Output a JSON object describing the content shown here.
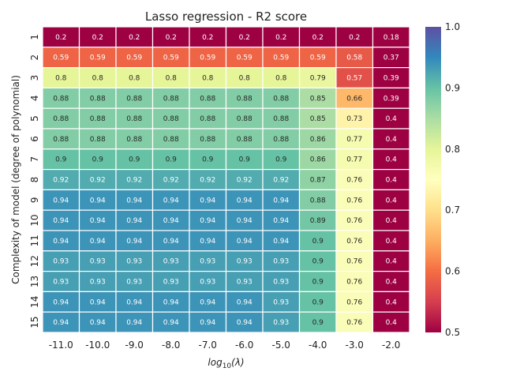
{
  "chart_data": {
    "type": "heatmap",
    "title": "Lasso regression - R2 score",
    "xlabel": "log10(λ)",
    "ylabel": "Complexity of model (degree of polynomial)",
    "x_categories": [
      "-11.0",
      "-10.0",
      "-9.0",
      "-8.0",
      "-7.0",
      "-6.0",
      "-5.0",
      "-4.0",
      "-3.0",
      "-2.0"
    ],
    "y_categories": [
      "1",
      "2",
      "3",
      "4",
      "5",
      "6",
      "7",
      "8",
      "9",
      "10",
      "11",
      "12",
      "13",
      "14",
      "15"
    ],
    "values": [
      [
        0.2,
        0.2,
        0.2,
        0.2,
        0.2,
        0.2,
        0.2,
        0.2,
        0.2,
        0.18
      ],
      [
        0.59,
        0.59,
        0.59,
        0.59,
        0.59,
        0.59,
        0.59,
        0.59,
        0.58,
        0.37
      ],
      [
        0.8,
        0.8,
        0.8,
        0.8,
        0.8,
        0.8,
        0.8,
        0.79,
        0.57,
        0.39
      ],
      [
        0.88,
        0.88,
        0.88,
        0.88,
        0.88,
        0.88,
        0.88,
        0.85,
        0.66,
        0.39
      ],
      [
        0.88,
        0.88,
        0.88,
        0.88,
        0.88,
        0.88,
        0.88,
        0.85,
        0.73,
        0.4
      ],
      [
        0.88,
        0.88,
        0.88,
        0.88,
        0.88,
        0.88,
        0.88,
        0.86,
        0.77,
        0.4
      ],
      [
        0.9,
        0.9,
        0.9,
        0.9,
        0.9,
        0.9,
        0.9,
        0.86,
        0.77,
        0.4
      ],
      [
        0.92,
        0.92,
        0.92,
        0.92,
        0.92,
        0.92,
        0.92,
        0.87,
        0.76,
        0.4
      ],
      [
        0.94,
        0.94,
        0.94,
        0.94,
        0.94,
        0.94,
        0.94,
        0.88,
        0.76,
        0.4
      ],
      [
        0.94,
        0.94,
        0.94,
        0.94,
        0.94,
        0.94,
        0.94,
        0.89,
        0.76,
        0.4
      ],
      [
        0.94,
        0.94,
        0.94,
        0.94,
        0.94,
        0.94,
        0.94,
        0.9,
        0.76,
        0.4
      ],
      [
        0.93,
        0.93,
        0.93,
        0.93,
        0.93,
        0.93,
        0.93,
        0.9,
        0.76,
        0.4
      ],
      [
        0.93,
        0.93,
        0.93,
        0.93,
        0.93,
        0.93,
        0.93,
        0.9,
        0.76,
        0.4
      ],
      [
        0.94,
        0.94,
        0.94,
        0.94,
        0.94,
        0.94,
        0.93,
        0.9,
        0.76,
        0.4
      ],
      [
        0.94,
        0.94,
        0.94,
        0.94,
        0.94,
        0.94,
        0.93,
        0.9,
        0.76,
        0.4
      ]
    ],
    "vmin": 0.5,
    "vmax": 1.0,
    "colormap": "Spectral",
    "colorbar_ticks": [
      "0.5",
      "0.6",
      "0.7",
      "0.8",
      "0.9",
      "1.0"
    ],
    "grid": false
  }
}
